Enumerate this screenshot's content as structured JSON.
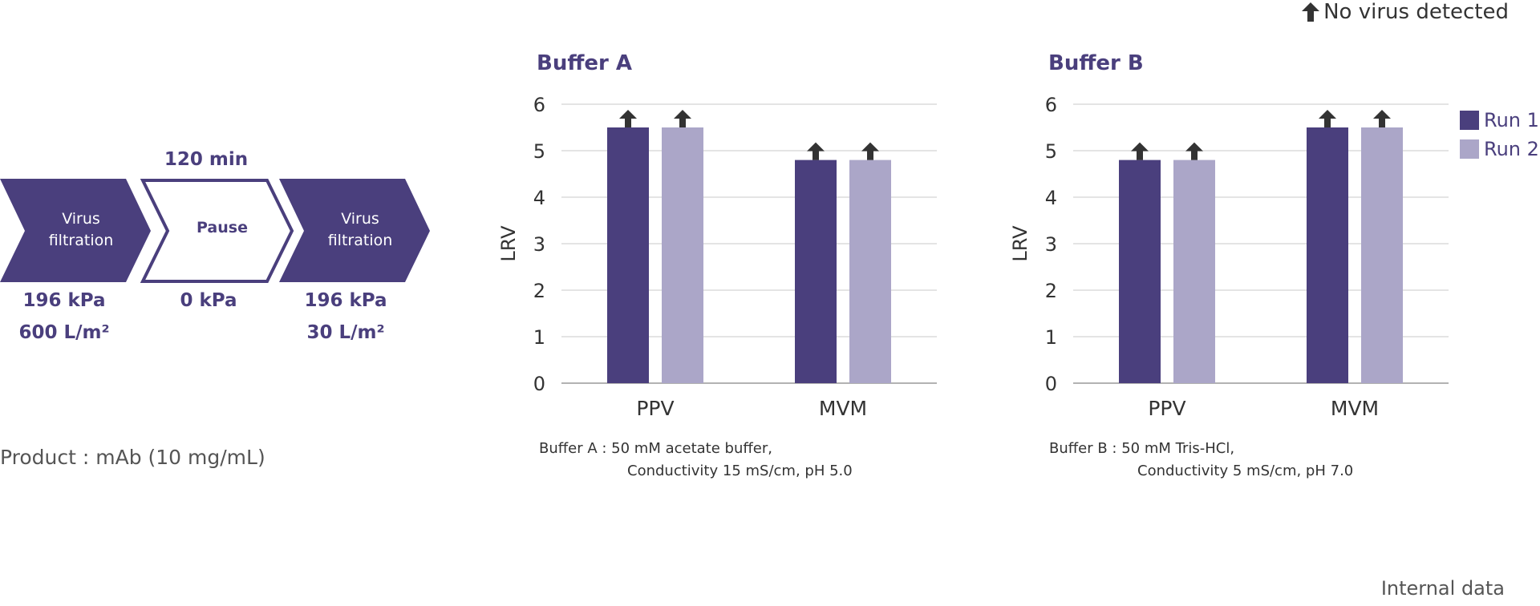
{
  "legend_note": "No virus detected",
  "flow": {
    "steps": [
      {
        "label_line1": "Virus",
        "label_line2": "filtration",
        "pressure": "196 kPa",
        "volume": "600 L/m²"
      },
      {
        "label_line1": "Pause",
        "label_line2": "",
        "pressure": "0 kPa",
        "volume": "",
        "duration": "120 min"
      },
      {
        "label_line1": "Virus",
        "label_line2": "filtration",
        "pressure": "196 kPa",
        "volume": "30 L/m²"
      }
    ]
  },
  "product_note": "Product : mAb (10 mg/mL)",
  "footer_note": "Internal data",
  "colors": {
    "run1": "#4a3f7d",
    "run2": "#aba6c8",
    "grid": "#c8c8c8",
    "arrow": "#333333"
  },
  "legend": [
    "Run 1",
    "Run 2"
  ],
  "captions": {
    "a_line1": "Buffer A : 50 mM acetate buffer,",
    "a_line2": "Conductivity 15 mS/cm, pH 5.0",
    "b_line1": "Buffer B : 50 mM Tris-HCl,",
    "b_line2": "Conductivity 5 mS/cm, pH 7.0"
  },
  "chart_data": [
    {
      "type": "bar",
      "title": "Buffer A",
      "ylabel": "LRV",
      "xlabel": "",
      "ylim": [
        0,
        6
      ],
      "yticks": [
        0,
        1,
        2,
        3,
        4,
        5,
        6
      ],
      "categories": [
        "PPV",
        "MVM"
      ],
      "series": [
        {
          "name": "Run 1",
          "values": [
            5.5,
            4.8
          ]
        },
        {
          "name": "Run 2",
          "values": [
            5.5,
            4.8
          ]
        }
      ],
      "annotations": "arrow above every bar = No virus detected",
      "grid": true
    },
    {
      "type": "bar",
      "title": "Buffer B",
      "ylabel": "LRV",
      "xlabel": "",
      "ylim": [
        0,
        6
      ],
      "yticks": [
        0,
        1,
        2,
        3,
        4,
        5,
        6
      ],
      "categories": [
        "PPV",
        "MVM"
      ],
      "series": [
        {
          "name": "Run 1",
          "values": [
            4.8,
            5.5
          ]
        },
        {
          "name": "Run 2",
          "values": [
            4.8,
            5.5
          ]
        }
      ],
      "annotations": "arrow above every bar = No virus detected",
      "grid": true,
      "legend_position": "right"
    }
  ]
}
